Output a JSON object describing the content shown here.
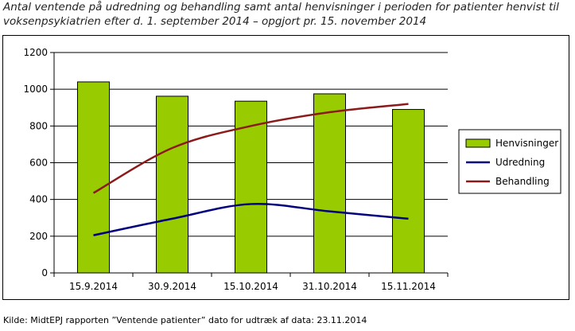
{
  "title": "Antal ventende på udredning og behandling samt antal henvisninger i perioden for patienter henvist til voksenpsykiatrien efter d. 1. september 2014 – opgjort pr. 15. november 2014",
  "source": "Kilde: MidtEPJ rapporten ”Ventende patienter” dato for udtræk af data: 23.11.2014",
  "chart_data": {
    "type": "bar",
    "categories": [
      "15.9.2014",
      "30.9.2014",
      "15.10.2014",
      "31.10.2014",
      "15.11.2014"
    ],
    "ylim": [
      0,
      1200
    ],
    "yticks": [
      0,
      200,
      400,
      600,
      800,
      1000,
      1200
    ],
    "grid": true,
    "legend_position": "right",
    "series": [
      {
        "name": "Henvisninger",
        "type": "bar",
        "color": "#99cc00",
        "values": [
          1040,
          962,
          935,
          975,
          890
        ]
      },
      {
        "name": "Udredning",
        "type": "line",
        "color": "#000080",
        "values": [
          205,
          295,
          375,
          335,
          295
        ]
      },
      {
        "name": "Behandling",
        "type": "line",
        "color": "#8b1a1a",
        "values": [
          435,
          680,
          800,
          875,
          920
        ]
      }
    ]
  }
}
